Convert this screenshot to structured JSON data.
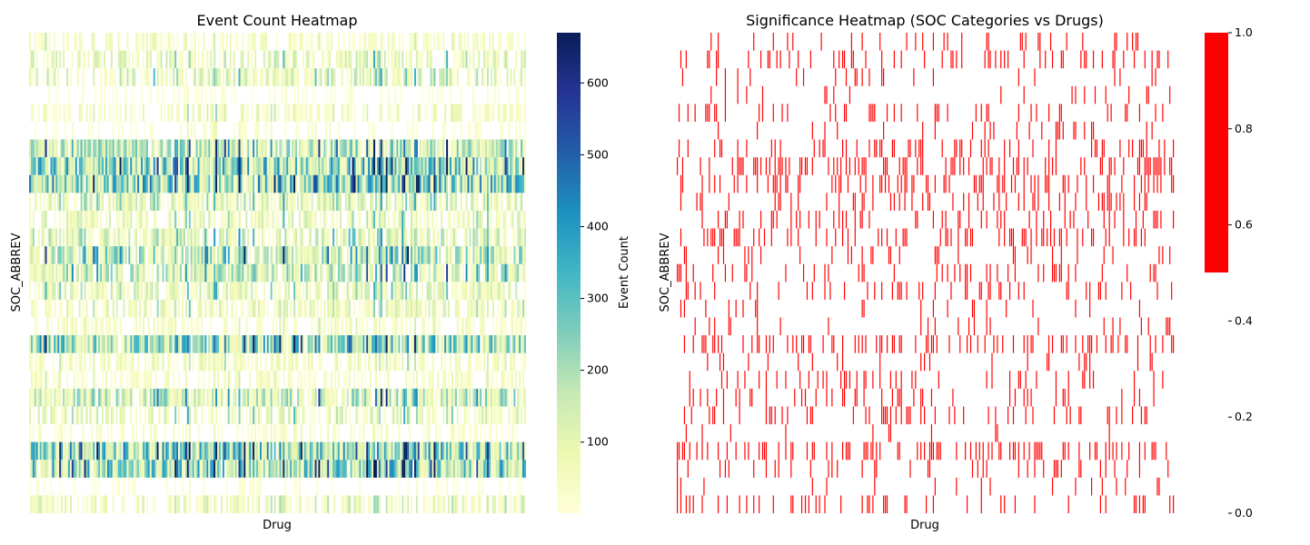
{
  "chart_data": [
    {
      "type": "heatmap",
      "title": "Event Count Heatmap",
      "xlabel": "Drug",
      "ylabel": "SOC_ABBREV",
      "colormap": "YlGnBu",
      "colorbar": {
        "label": "Event Count",
        "ticks": [
          100,
          200,
          300,
          400,
          500,
          600
        ],
        "range": [
          1,
          670
        ]
      },
      "x_tick_labels_shown": false,
      "y_tick_labels_shown": false,
      "n_rows": 27,
      "n_cols": 280,
      "row_intensity": [
        0.15,
        0.3,
        0.35,
        0.05,
        0.2,
        0.08,
        0.55,
        0.85,
        0.9,
        0.35,
        0.3,
        0.4,
        0.6,
        0.5,
        0.35,
        0.25,
        0.15,
        0.75,
        0.2,
        0.15,
        0.55,
        0.3,
        0.1,
        0.85,
        0.8,
        0.05,
        0.25
      ],
      "row_coverage": [
        0.5,
        0.55,
        0.6,
        0.2,
        0.45,
        0.25,
        0.9,
        0.98,
        0.98,
        0.7,
        0.6,
        0.7,
        0.85,
        0.8,
        0.7,
        0.6,
        0.45,
        0.95,
        0.55,
        0.45,
        0.85,
        0.6,
        0.35,
        0.98,
        0.97,
        0.2,
        0.55
      ]
    },
    {
      "type": "heatmap",
      "title": "Significance Heatmap (SOC Categories vs Drugs)",
      "xlabel": "Drug",
      "ylabel": "SOC_ABBREV",
      "colormap": "red for significant (1), white for not significant (0)",
      "colors": {
        "significant": "#ff0000",
        "not_significant": "#ffffff"
      },
      "colorbar": {
        "ticks": [
          0.0,
          0.2,
          0.4,
          0.6,
          0.8,
          1.0
        ],
        "tick_labels": [
          "0.0",
          "0.2",
          "0.4",
          "0.6",
          "0.8",
          "1.0"
        ],
        "range": [
          0,
          1
        ]
      },
      "x_tick_labels_shown": false,
      "y_tick_labels_shown": false,
      "n_rows": 27,
      "n_cols": 280,
      "row_significance_fraction": [
        0.12,
        0.18,
        0.1,
        0.06,
        0.14,
        0.08,
        0.22,
        0.32,
        0.3,
        0.15,
        0.2,
        0.22,
        0.14,
        0.18,
        0.16,
        0.12,
        0.1,
        0.26,
        0.1,
        0.14,
        0.18,
        0.16,
        0.04,
        0.3,
        0.2,
        0.06,
        0.18
      ]
    }
  ]
}
